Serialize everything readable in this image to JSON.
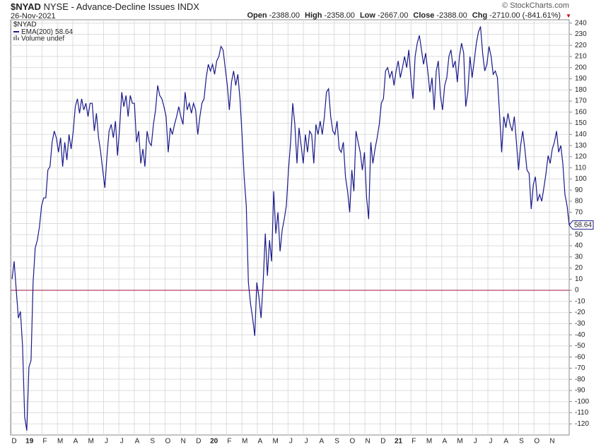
{
  "header": {
    "symbol": "$NYAD",
    "description": "NYSE - Advance-Decline Issues",
    "exchange": "INDX",
    "date": "26-Nov-2021",
    "copyright": "© StockCharts.com",
    "quote": [
      {
        "label": "Open",
        "value": "-2388.00"
      },
      {
        "label": "High",
        "value": "-2358.00"
      },
      {
        "label": "Low",
        "value": "-2667.00"
      },
      {
        "label": "Close",
        "value": "-2388.00"
      },
      {
        "label": "Chg",
        "value": "-2710.00 (-841.61%)"
      }
    ]
  },
  "legend": {
    "symbol": "$NYAD",
    "volume": "Volume undef"
  },
  "chart_data": {
    "type": "line",
    "grid": true,
    "reference_line": 0,
    "reference_color": "#b0305a",
    "x_labels": [
      "D",
      "19",
      "F",
      "M",
      "A",
      "M",
      "J",
      "J",
      "A",
      "S",
      "O",
      "N",
      "D",
      "20",
      "F",
      "M",
      "A",
      "M",
      "J",
      "J",
      "A",
      "S",
      "O",
      "N",
      "D",
      "21",
      "F",
      "M",
      "A",
      "M",
      "J",
      "J",
      "A",
      "S",
      "O",
      "N"
    ],
    "ylim": [
      -130,
      243
    ],
    "yticks": [
      240,
      230,
      220,
      210,
      200,
      190,
      180,
      170,
      160,
      150,
      140,
      130,
      120,
      110,
      100,
      90,
      80,
      70,
      60,
      50,
      40,
      30,
      20,
      10,
      0,
      -10,
      -20,
      -30,
      -40,
      -50,
      -60,
      -70,
      -80,
      -90,
      -100,
      -110,
      -120
    ],
    "series": [
      {
        "name": "EMA(200)",
        "color": "#1a1a8c",
        "values": [
          10,
          26,
          0,
          -25,
          -19,
          -50,
          -114,
          -126,
          -69,
          -63,
          7,
          38,
          45,
          57,
          76,
          83,
          83,
          108,
          111,
          133,
          143,
          137,
          124,
          137,
          111,
          133,
          117,
          140,
          127,
          143,
          165,
          172,
          159,
          172,
          162,
          168,
          156,
          168,
          168,
          143,
          159,
          137,
          124,
          108,
          92,
          121,
          143,
          149,
          137,
          152,
          121,
          146,
          178,
          165,
          175,
          156,
          175,
          168,
          168,
          133,
          143,
          114,
          127,
          111,
          143,
          133,
          130,
          149,
          162,
          184,
          175,
          172,
          165,
          156,
          124,
          146,
          140,
          149,
          156,
          165,
          156,
          149,
          178,
          162,
          168,
          159,
          168,
          162,
          140,
          156,
          168,
          172,
          191,
          203,
          197,
          203,
          194,
          206,
          210,
          219,
          216,
          200,
          184,
          162,
          187,
          197,
          184,
          194,
          172,
          140,
          102,
          76,
          7,
          -12,
          -25,
          -41,
          7,
          -6,
          -25,
          7,
          51,
          13,
          45,
          26,
          89,
          51,
          70,
          35,
          54,
          64,
          76,
          108,
          133,
          168,
          149,
          114,
          146,
          130,
          114,
          140,
          124,
          143,
          140,
          114,
          149,
          140,
          152,
          140,
          156,
          178,
          181,
          156,
          143,
          140,
          152,
          127,
          124,
          133,
          102,
          89,
          70,
          108,
          89,
          143,
          133,
          124,
          108,
          124,
          83,
          64,
          133,
          114,
          127,
          137,
          149,
          168,
          172,
          197,
          200,
          191,
          197,
          184,
          197,
          206,
          191,
          200,
          210,
          200,
          216,
          191,
          172,
          210,
          222,
          229,
          216,
          203,
          213,
          197,
          178,
          191,
          162,
          197,
          206,
          175,
          162,
          184,
          191,
          210,
          216,
          200,
          206,
          187,
          210,
          222,
          213,
          165,
          178,
          210,
          191,
          206,
          222,
          232,
          237,
          213,
          197,
          203,
          219,
          210,
          194,
          197,
          191,
          159,
          124,
          156,
          146,
          159,
          149,
          143,
          156,
          133,
          108,
          130,
          143,
          127,
          108,
          105,
          73,
          95,
          102,
          80,
          86,
          80,
          92,
          105,
          121,
          114,
          127,
          133,
          143,
          124,
          130,
          114,
          86,
          76,
          58.64
        ]
      }
    ]
  }
}
